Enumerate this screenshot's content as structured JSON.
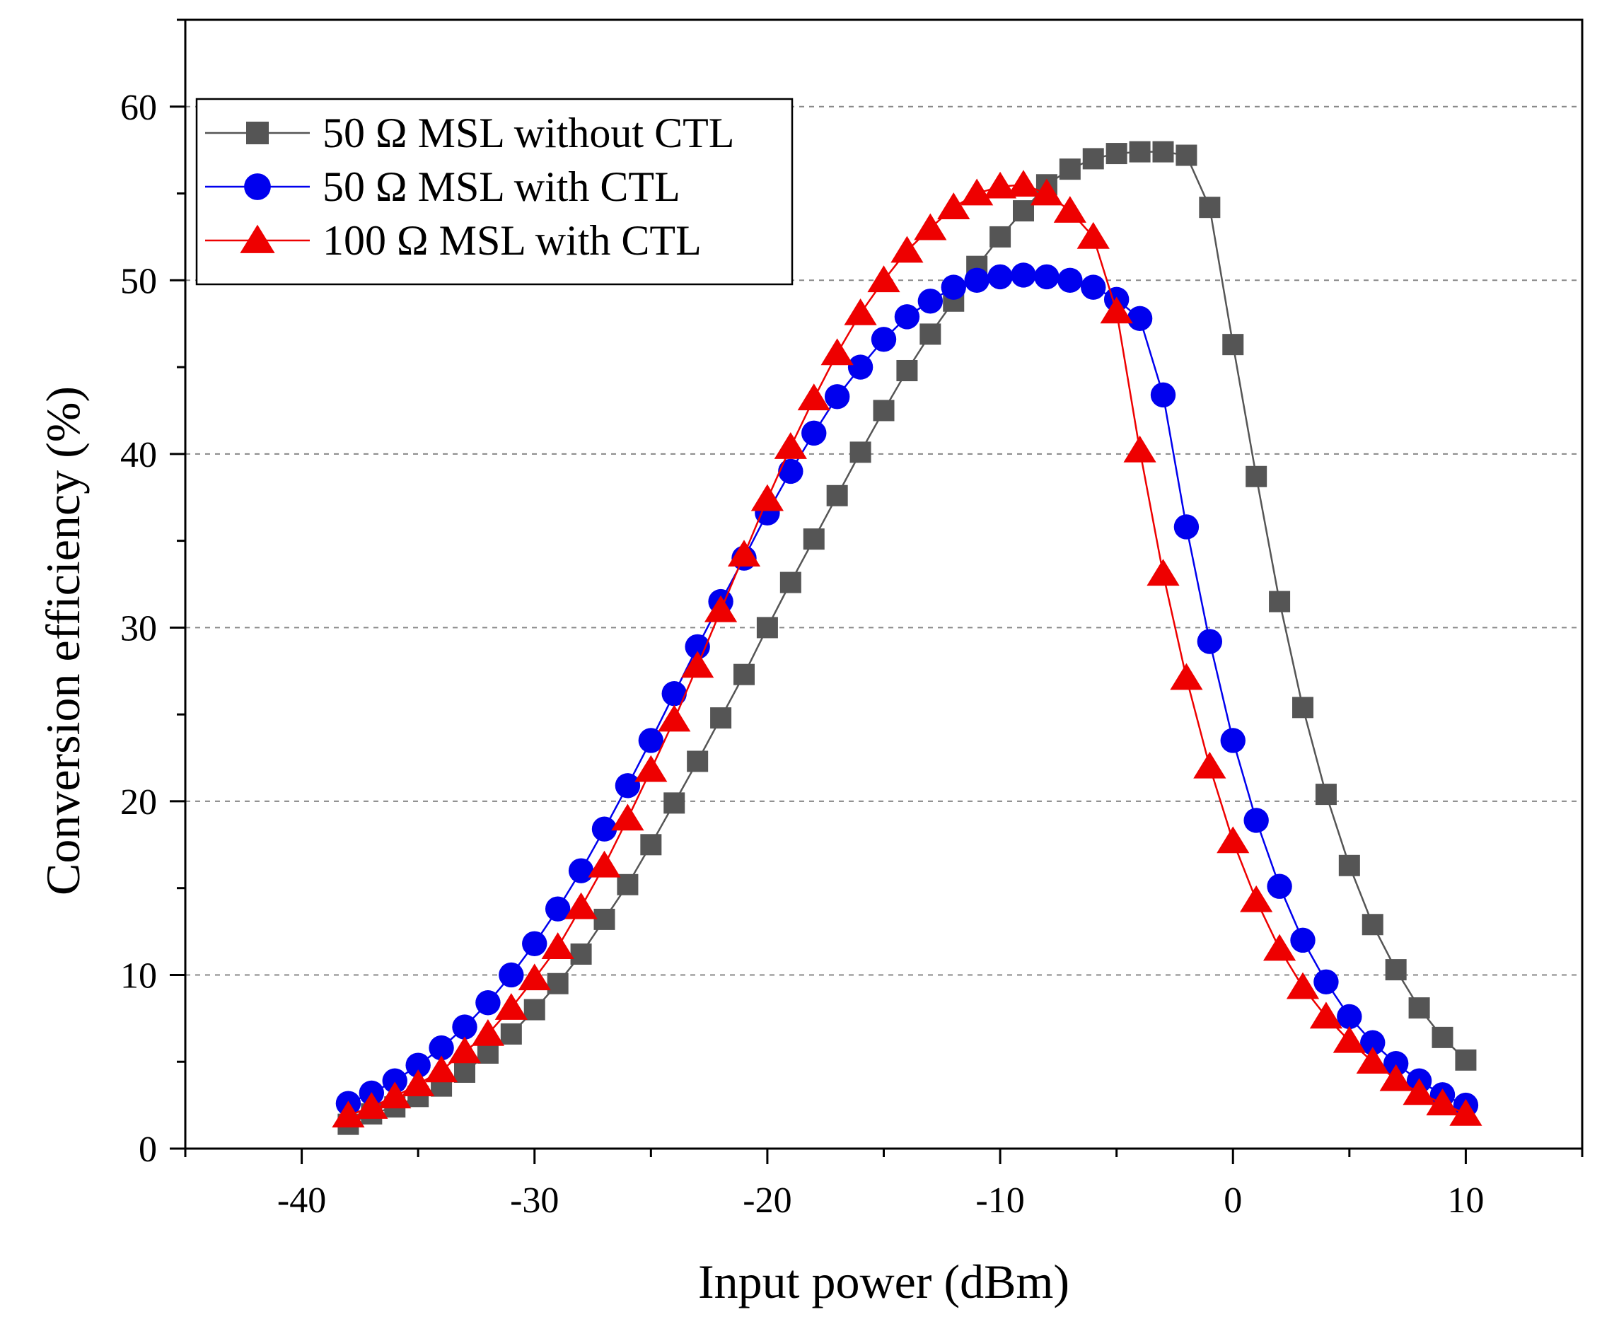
{
  "chart_data": {
    "type": "line",
    "title": "",
    "xlabel": "Input power (dBm)",
    "ylabel": "Conversion efficiency (%)",
    "xlim": [
      -45,
      15
    ],
    "ylim": [
      0,
      65
    ],
    "xticks": [
      -40,
      -30,
      -20,
      -10,
      0,
      10
    ],
    "yticks": [
      0,
      10,
      20,
      30,
      40,
      50,
      60
    ],
    "grid": "horizontal-dashed",
    "legend_position": "top-left",
    "x": [
      -38,
      -37,
      -36,
      -35,
      -34,
      -33,
      -32,
      -31,
      -30,
      -29,
      -28,
      -27,
      -26,
      -25,
      -24,
      -23,
      -22,
      -21,
      -20,
      -19,
      -18,
      -17,
      -16,
      -15,
      -14,
      -13,
      -12,
      -11,
      -10,
      -9,
      -8,
      -7,
      -6,
      -5,
      -4,
      -3,
      -2,
      -1,
      0,
      1,
      2,
      3,
      4,
      5,
      6,
      7,
      8,
      9,
      10
    ],
    "series": [
      {
        "name": "50 Ω MSL without CTL",
        "color": "#555555",
        "marker": "square",
        "values": [
          1.4,
          2.0,
          2.4,
          3.0,
          3.6,
          4.4,
          5.5,
          6.6,
          8.0,
          9.5,
          11.2,
          13.2,
          15.2,
          17.5,
          19.9,
          22.3,
          24.8,
          27.3,
          30.0,
          32.6,
          35.1,
          37.6,
          40.1,
          42.5,
          44.8,
          46.9,
          48.8,
          50.8,
          52.5,
          54.0,
          55.5,
          56.4,
          57.0,
          57.3,
          57.4,
          57.4,
          57.2,
          54.2,
          46.3,
          38.7,
          31.5,
          25.4,
          20.4,
          16.3,
          12.9,
          10.3,
          8.1,
          6.4,
          5.1
        ]
      },
      {
        "name": "50 Ω MSL with CTL",
        "color": "#0000ee",
        "marker": "circle",
        "values": [
          2.6,
          3.2,
          3.9,
          4.8,
          5.8,
          7.0,
          8.4,
          10.0,
          11.8,
          13.8,
          16.0,
          18.4,
          20.9,
          23.5,
          26.2,
          28.9,
          31.5,
          34.0,
          36.6,
          39.0,
          41.2,
          43.3,
          45.0,
          46.6,
          47.9,
          48.8,
          49.6,
          50.0,
          50.2,
          50.3,
          50.2,
          50.0,
          49.6,
          48.9,
          47.8,
          43.4,
          35.8,
          29.2,
          23.5,
          18.9,
          15.1,
          12.0,
          9.6,
          7.6,
          6.1,
          4.9,
          3.9,
          3.1,
          2.5
        ]
      },
      {
        "name": "100 Ω MSL with CTL",
        "color": "#ee0000",
        "marker": "triangle",
        "values": [
          1.9,
          2.4,
          3.0,
          3.7,
          4.5,
          5.6,
          6.6,
          8.1,
          9.8,
          11.6,
          13.9,
          16.3,
          19.0,
          21.8,
          24.7,
          27.8,
          31.0,
          34.2,
          37.4,
          40.4,
          43.2,
          45.8,
          48.1,
          50.0,
          51.7,
          53.0,
          54.2,
          55.0,
          55.4,
          55.5,
          55.0,
          54.0,
          52.5,
          48.2,
          40.2,
          33.1,
          27.1,
          22.0,
          17.7,
          14.3,
          11.5,
          9.3,
          7.6,
          6.2,
          5.0,
          4.0,
          3.2,
          2.6,
          2.0
        ]
      }
    ]
  }
}
